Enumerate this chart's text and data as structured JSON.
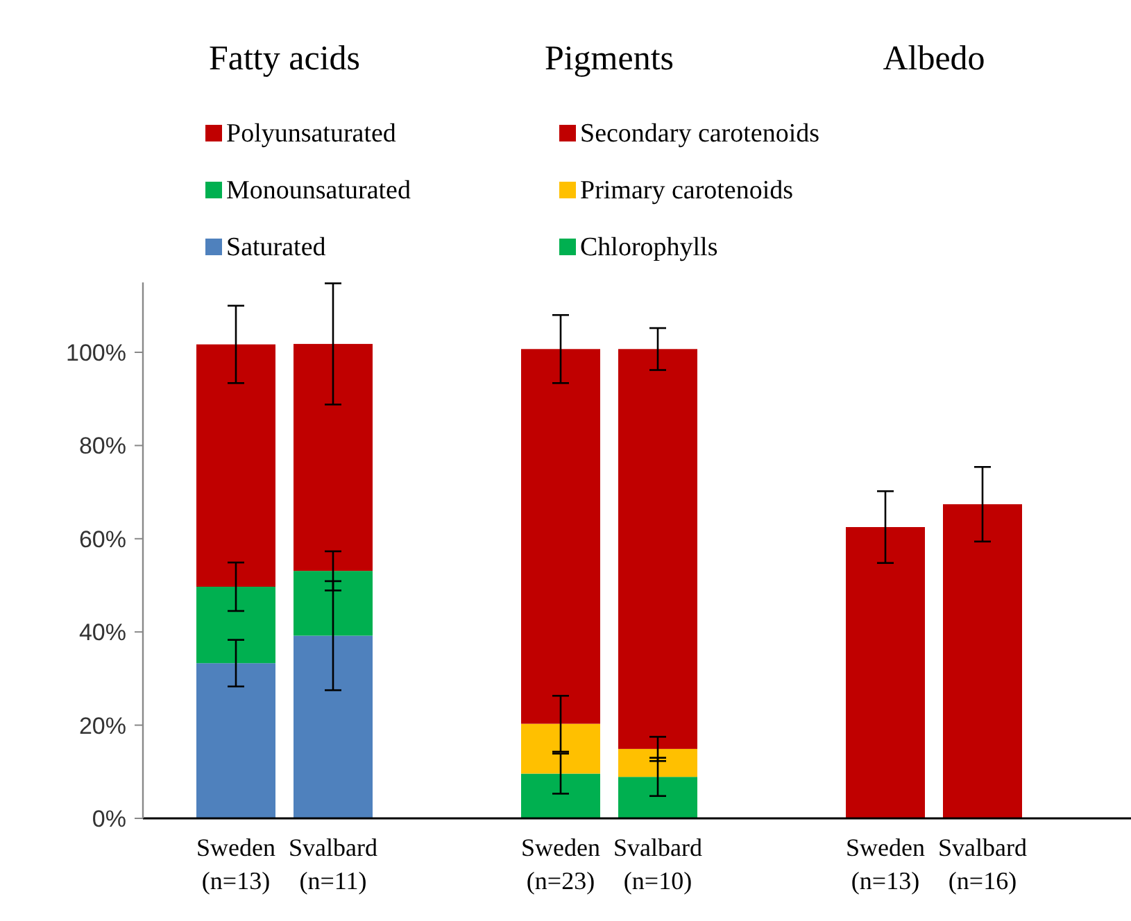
{
  "chart_data": {
    "type": "bar",
    "stacked": true,
    "annotations": [
      "Fatty acids",
      "Pigments",
      "Albedo"
    ],
    "categories": [
      "Sweden (n=13)",
      "Svalbard (n=11)",
      null,
      "Sweden (n=23)",
      "Svalbard (n=10)",
      null,
      "Sweden (n=13)",
      "Svalbard (n=16)"
    ],
    "ylim": [
      0,
      115
    ],
    "yticks": [
      {
        "value": 0,
        "label": "0%"
      },
      {
        "value": 20,
        "label": "20%"
      },
      {
        "value": 40,
        "label": "40%"
      },
      {
        "value": 60,
        "label": "60%"
      },
      {
        "value": 80,
        "label": "80%"
      },
      {
        "value": 100,
        "label": "100%"
      }
    ],
    "grid": false,
    "legend": "top",
    "series": [
      {
        "name": "Saturated",
        "color": "#4f81bd",
        "values": [
          33.3,
          39.2,
          null,
          null,
          null,
          null,
          null,
          null
        ],
        "errors": [
          5,
          11.7,
          null,
          null,
          null,
          null,
          null,
          null
        ]
      },
      {
        "name": "Monounsaturated",
        "color": "#00b050",
        "values": [
          16.4,
          13.9,
          null,
          null,
          null,
          null,
          null,
          null
        ],
        "errors": [
          5.2,
          4.2,
          null,
          null,
          null,
          null,
          null,
          null
        ]
      },
      {
        "name": "Polyunsaturated",
        "color": "#c00000",
        "values": [
          52,
          48.7,
          null,
          null,
          null,
          null,
          null,
          null
        ],
        "errors": [
          8.3,
          13,
          null,
          null,
          null,
          null,
          null,
          null
        ]
      },
      {
        "name": "Chlorophylls",
        "color": "#00b050",
        "values": [
          null,
          null,
          null,
          9.6,
          8.9,
          null,
          null,
          null
        ],
        "errors": [
          null,
          null,
          null,
          4.3,
          4.1,
          null,
          null,
          null
        ]
      },
      {
        "name": "Primary carotenoids",
        "color": "#ffc000",
        "values": [
          null,
          null,
          null,
          10.7,
          6,
          null,
          null,
          null
        ],
        "errors": [
          null,
          null,
          null,
          6,
          2.6,
          null,
          null,
          null
        ]
      },
      {
        "name": "Secondary carotenoids",
        "color": "#c00000",
        "values": [
          null,
          null,
          null,
          80.4,
          85.8,
          null,
          null,
          null
        ],
        "errors": [
          null,
          null,
          null,
          7.3,
          4.5,
          null,
          null,
          null
        ]
      },
      {
        "color": "#c00000",
        "values": [
          null,
          null,
          null,
          null,
          null,
          null,
          62.5,
          67.4
        ],
        "errors": [
          null,
          null,
          null,
          null,
          null,
          null,
          7.7,
          8
        ]
      }
    ]
  }
}
